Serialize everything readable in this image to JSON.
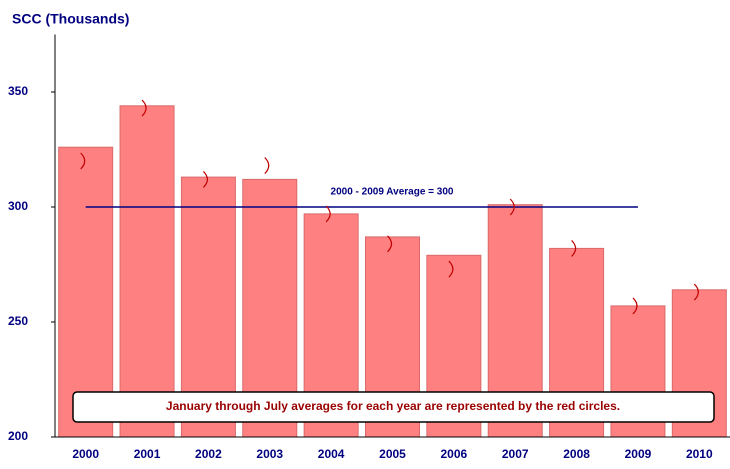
{
  "chart_data": {
    "type": "bar",
    "title": "SCC (Thousands)",
    "categories": [
      "2000",
      "2001",
      "2002",
      "2003",
      "2004",
      "2005",
      "2006",
      "2007",
      "2008",
      "2009",
      "2010"
    ],
    "values": [
      326,
      344,
      313,
      312,
      297,
      287,
      279,
      301,
      282,
      257,
      264
    ],
    "color": "#ff8080",
    "markers": {
      "values": [
        320,
        343,
        312,
        318,
        297,
        284,
        273,
        300,
        282,
        257,
        263
      ],
      "color": "#c00000"
    },
    "average": {
      "value": 300,
      "label": "2000 - 2009 Average = 300",
      "color": "#000080"
    },
    "annotation": "January through July averages for each year are represented by the red circles.",
    "ylim": [
      200,
      375
    ],
    "yticks": [
      200,
      250,
      300,
      350
    ],
    "grid": false
  }
}
